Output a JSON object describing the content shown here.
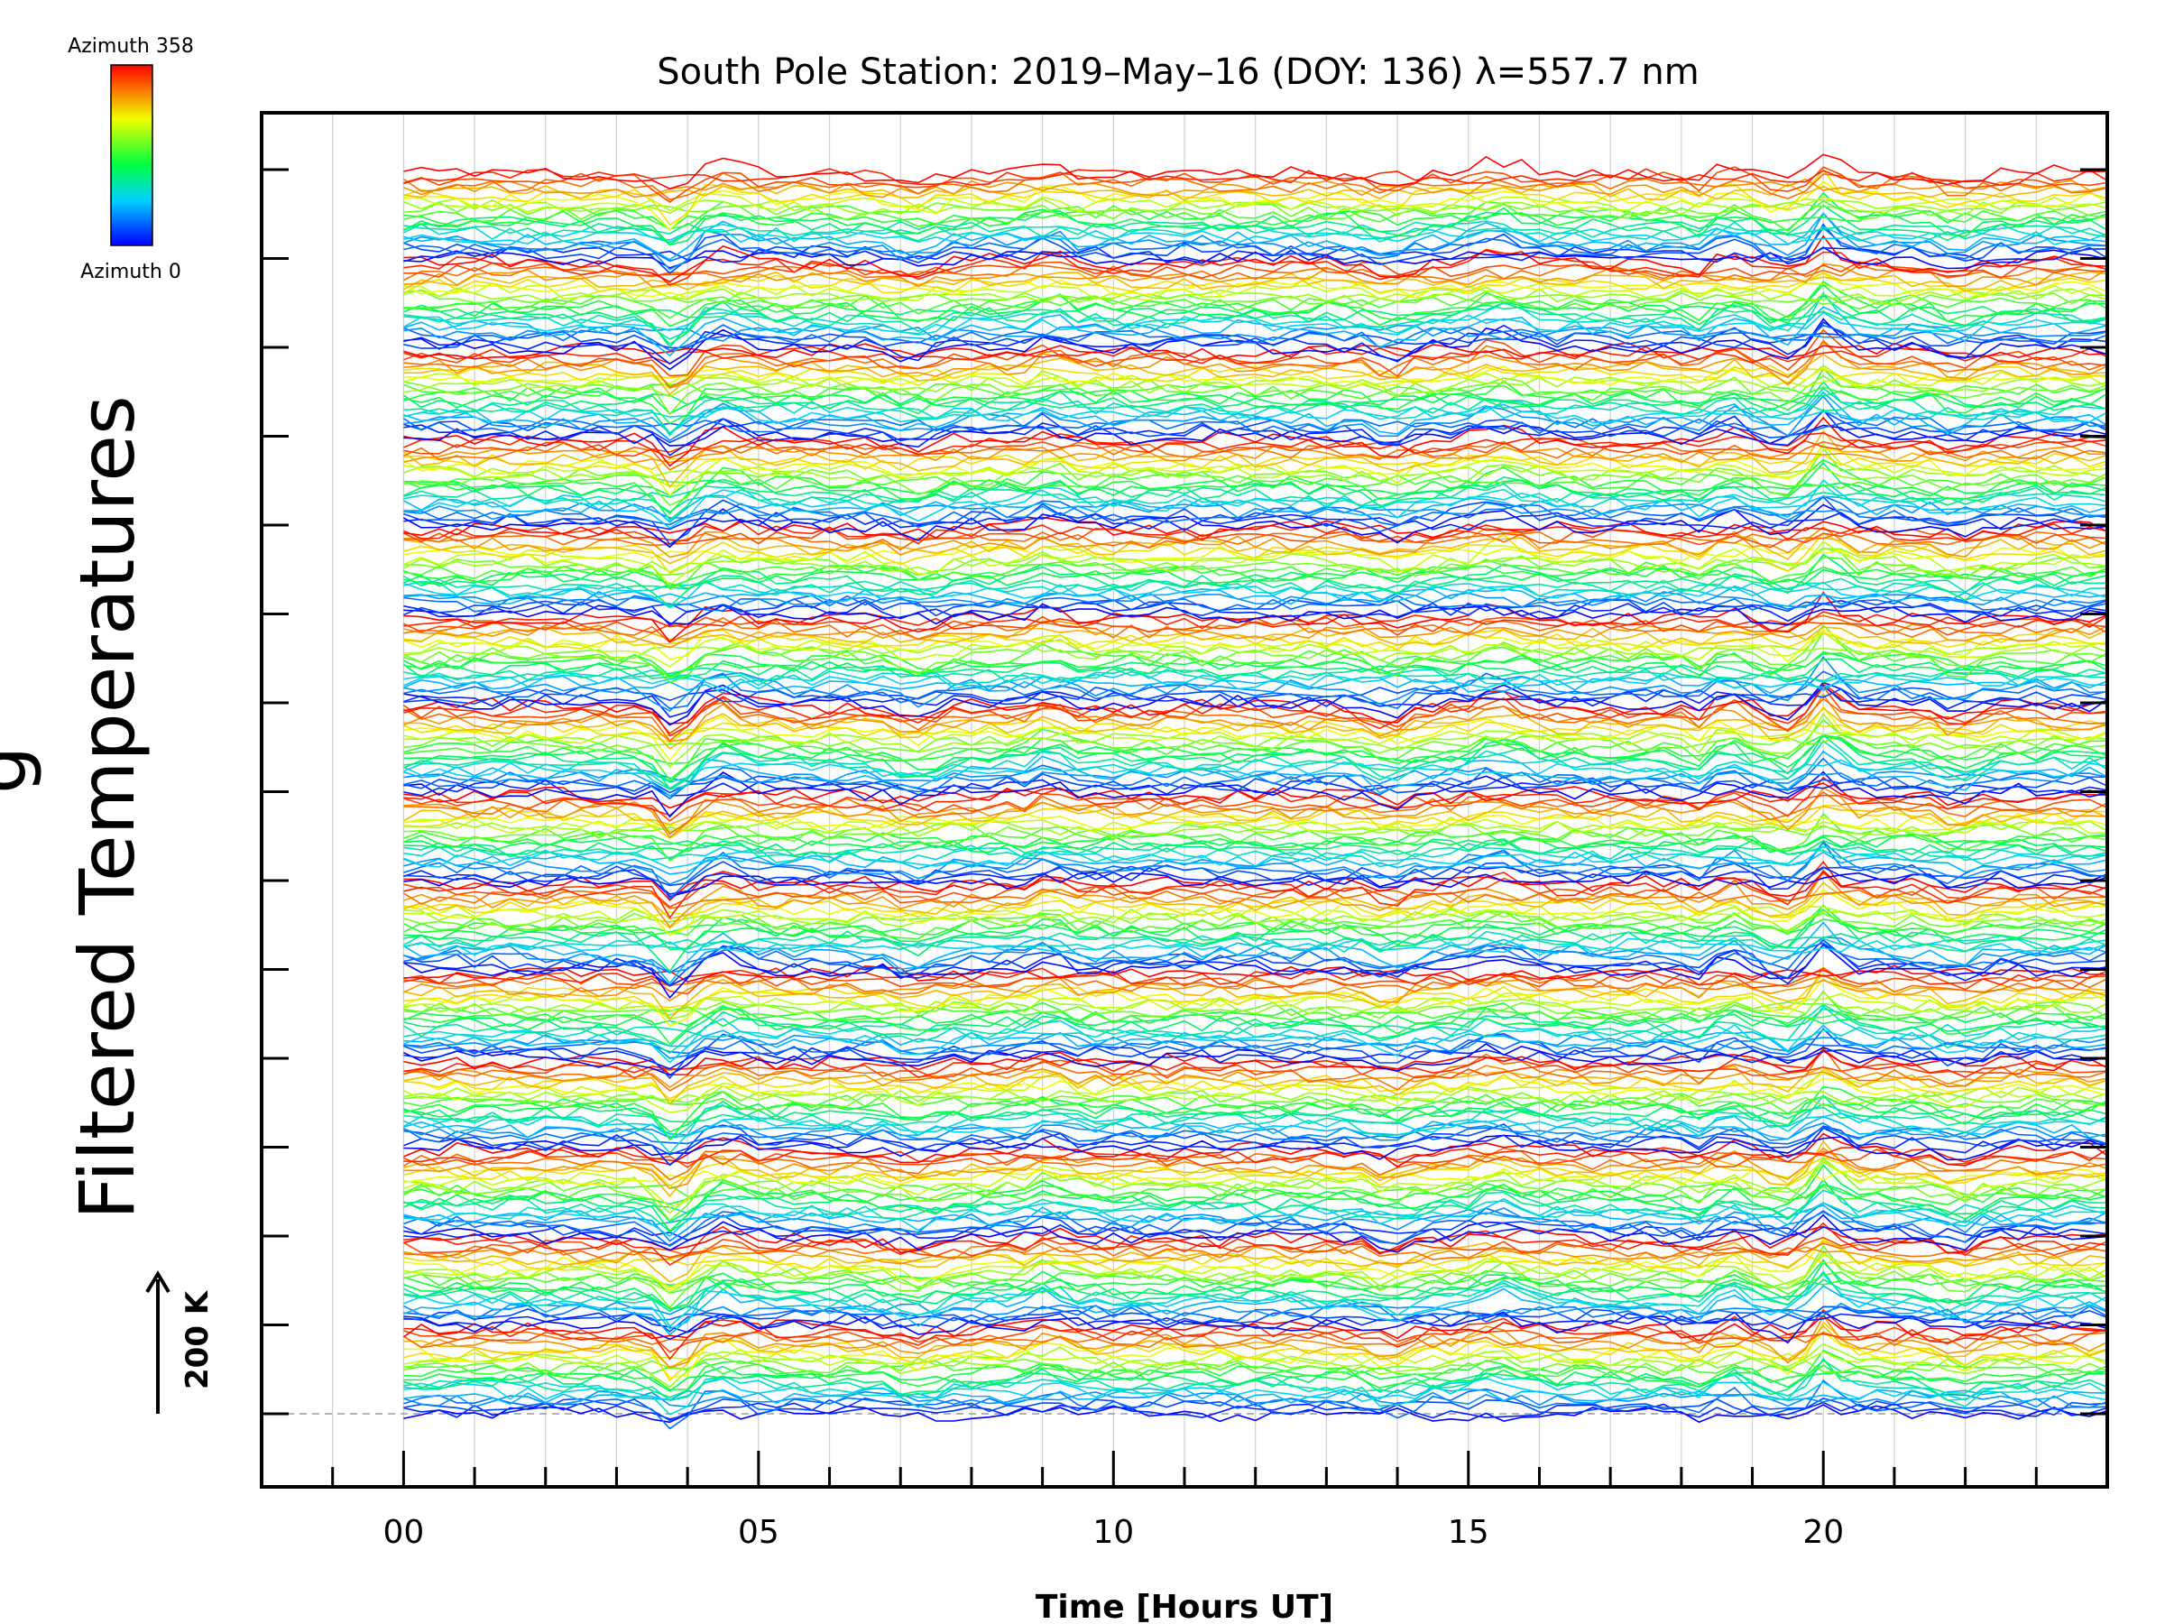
{
  "chart_data": {
    "type": "line",
    "title": "South Pole Station: 2019–May–16 (DOY: 136) λ=557.7 nm",
    "xlabel": "Time [Hours UT]",
    "ylabel": "Filtered Temperatures",
    "ylabel_partial": "g",
    "xlim": [
      -2,
      24
    ],
    "x_ticks": [
      0,
      5,
      10,
      15,
      20
    ],
    "x_tick_labels": [
      "00",
      "05",
      "10",
      "15",
      "20"
    ],
    "x_minor_step": 1,
    "y_offset_steps": 14,
    "traces_per_group": 24,
    "trace_spacing_K": 20,
    "scale_bar_label": "200 K",
    "legend": {
      "label_top": "Azimuth  358",
      "label_bottom": "Azimuth  0",
      "azimuth_min": 0,
      "azimuth_max": 358,
      "colormap": "rainbow (blue → cyan → green → yellow → red)"
    },
    "data_start_hour": 0,
    "data_end_hour": 24,
    "disturbance_hours": [
      3.8,
      4.5,
      7.2,
      9.1,
      13.9,
      15.4,
      18.3,
      18.6,
      19.5,
      20.0,
      21.9
    ],
    "series_description": "Waterfall of filtered temperature time series, one trace per azimuth, each vertically offset; traces colored by azimuth"
  }
}
